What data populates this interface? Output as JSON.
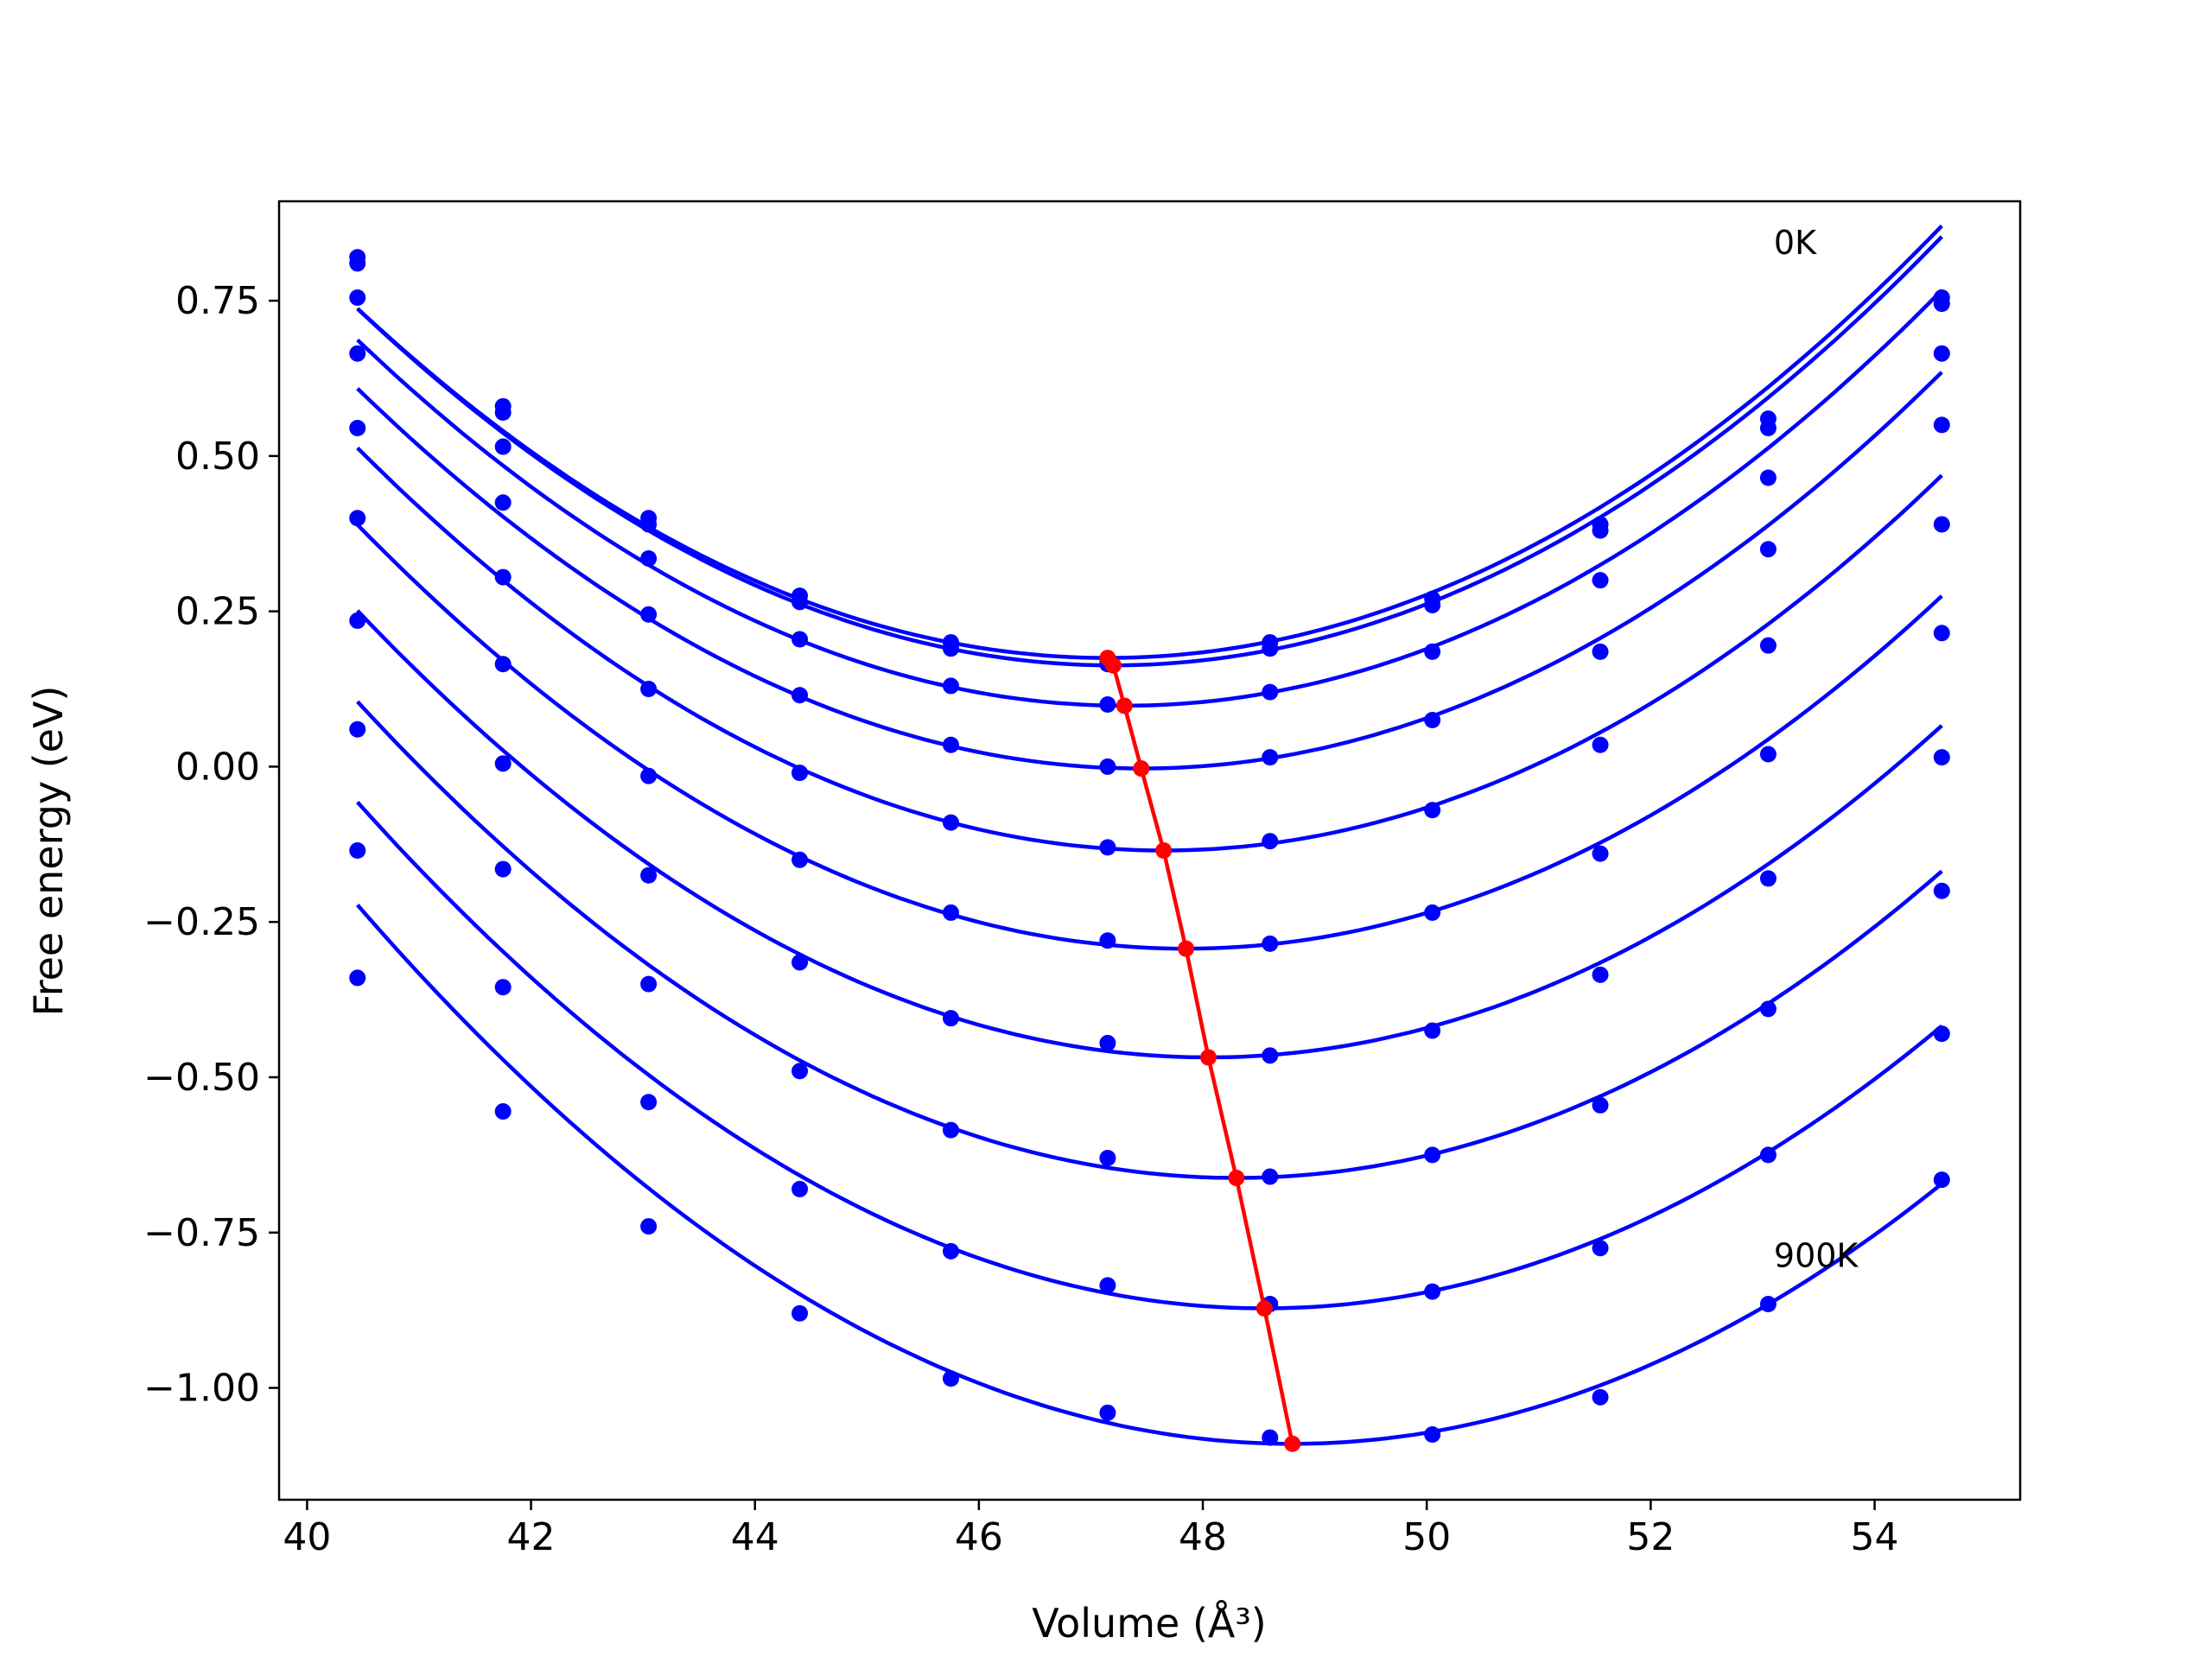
{
  "chart_data": {
    "type": "line",
    "title": "",
    "xlabel": "Volume (Å³)",
    "ylabel": "Free energy (eV)",
    "xlim": [
      39.75,
      55.3
    ],
    "ylim": [
      -1.18,
      0.91
    ],
    "xticks": [
      40,
      42,
      44,
      46,
      48,
      50,
      52,
      54
    ],
    "xtick_labels": [
      "40",
      "42",
      "44",
      "46",
      "48",
      "50",
      "52",
      "54"
    ],
    "yticks": [
      -1.0,
      -0.75,
      -0.5,
      -0.25,
      0.0,
      0.25,
      0.5,
      0.75
    ],
    "ytick_labels": [
      "−1.00",
      "−0.75",
      "−0.50",
      "−0.25",
      "0.00",
      "0.25",
      "0.50",
      "0.75"
    ],
    "grid": false,
    "colors": {
      "curves": "#0000ff",
      "minima": "#ff0000"
    },
    "annotations": [
      {
        "text": "0K",
        "x": 53.1,
        "y": 0.825
      },
      {
        "text": "900K",
        "x": 53.1,
        "y": -0.805
      }
    ],
    "x": [
      40.45,
      41.75,
      43.05,
      44.4,
      45.75,
      47.15,
      48.6,
      50.05,
      51.55,
      53.05,
      54.6
    ],
    "series": [
      {
        "values": [
          0.82,
          0.58,
          0.4,
          0.275,
          0.2,
          0.17,
          0.2,
          0.27,
          0.39,
          0.56,
          0.755
        ],
        "fit": {
          "vmin": 47.15,
          "fmin": 0.175,
          "k": 0.01253
        }
      },
      {
        "values": [
          0.81,
          0.57,
          0.39,
          0.265,
          0.19,
          0.165,
          0.19,
          0.26,
          0.38,
          0.545,
          0.745
        ],
        "fit": {
          "vmin": 47.2,
          "fmin": 0.163,
          "k": 0.0126
        }
      },
      {
        "values": [
          0.755,
          0.515,
          0.335,
          0.205,
          0.13,
          0.1,
          0.12,
          0.185,
          0.3,
          0.465,
          0.665
        ],
        "fit": {
          "vmin": 47.3,
          "fmin": 0.098,
          "k": 0.01255
        }
      },
      {
        "values": [
          0.665,
          0.425,
          0.245,
          0.115,
          0.035,
          0.0,
          0.015,
          0.075,
          0.185,
          0.35,
          0.55
        ],
        "fit": {
          "vmin": 47.45,
          "fmin": -0.003,
          "k": 0.01248
        }
      },
      {
        "values": [
          0.545,
          0.305,
          0.125,
          -0.01,
          -0.09,
          -0.13,
          -0.12,
          -0.07,
          0.035,
          0.195,
          0.39
        ],
        "fit": {
          "vmin": 47.65,
          "fmin": -0.135,
          "k": 0.0125
        }
      },
      {
        "values": [
          0.4,
          0.165,
          -0.015,
          -0.15,
          -0.235,
          -0.28,
          -0.285,
          -0.235,
          -0.14,
          0.02,
          0.215
        ],
        "fit": {
          "vmin": 47.85,
          "fmin": -0.293,
          "k": 0.01246
        }
      },
      {
        "values": [
          0.235,
          0.005,
          -0.175,
          -0.315,
          -0.405,
          -0.445,
          -0.465,
          -0.425,
          -0.335,
          -0.18,
          0.015
        ],
        "fit": {
          "vmin": 48.05,
          "fmin": -0.468,
          "k": 0.01245
        }
      },
      {
        "values": [
          0.06,
          -0.165,
          -0.35,
          -0.49,
          -0.585,
          -0.63,
          -0.66,
          -0.625,
          -0.545,
          -0.39,
          -0.2
        ],
        "fit": {
          "vmin": 48.3,
          "fmin": -0.662,
          "k": 0.01244
        }
      },
      {
        "values": [
          -0.135,
          -0.355,
          -0.54,
          -0.68,
          -0.78,
          -0.835,
          -0.865,
          -0.845,
          -0.775,
          -0.625,
          -0.43
        ],
        "fit": {
          "vmin": 48.55,
          "fmin": -0.872,
          "k": 0.01242
        }
      },
      {
        "values": [
          -0.34,
          -0.555,
          -0.74,
          -0.88,
          -0.985,
          -1.04,
          -1.08,
          -1.075,
          -1.015,
          -0.865,
          -0.665
        ],
        "fit": {
          "vmin": 48.8,
          "fmin": -1.09,
          "k": 0.01244
        }
      }
    ],
    "minima": {
      "x": [
        47.15,
        47.2,
        47.3,
        47.45,
        47.65,
        47.85,
        48.05,
        48.3,
        48.55,
        48.8
      ],
      "y": [
        0.175,
        0.163,
        0.098,
        -0.003,
        -0.135,
        -0.293,
        -0.468,
        -0.662,
        -0.872,
        -1.09
      ]
    }
  }
}
